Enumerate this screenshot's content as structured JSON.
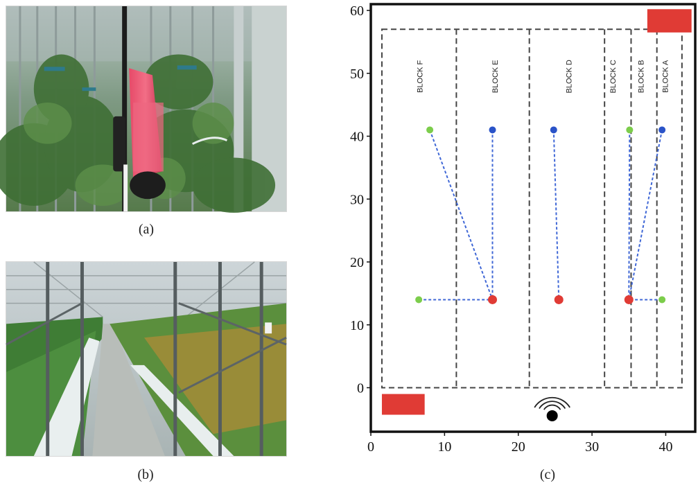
{
  "captions": {
    "a": "(a)",
    "b": "(b)",
    "c": "(c)"
  },
  "diagram": {
    "x_ticks": [
      0,
      10,
      20,
      30,
      40
    ],
    "y_ticks": [
      0,
      10,
      20,
      30,
      40,
      50,
      60
    ],
    "xlim": [
      0,
      44
    ],
    "ylim": [
      -7,
      61
    ],
    "block_labels": [
      {
        "name": "BLOCK F",
        "x": 7.0
      },
      {
        "name": "BLOCK E",
        "x": 17.2
      },
      {
        "name": "BLOCK D",
        "x": 27.2
      },
      {
        "name": "BLOCK C",
        "x": 33.2
      },
      {
        "name": "BLOCK B",
        "x": 37.0
      },
      {
        "name": "BLOCK A",
        "x": 40.3
      }
    ],
    "block_dividers": [
      11.6,
      21.5,
      31.7,
      35.3,
      38.8
    ],
    "block_region": {
      "x0": 1.5,
      "x1": 42.2,
      "y0": 0,
      "y1": 57
    },
    "red_nodes": [
      {
        "x": 16.5,
        "y": 14
      },
      {
        "x": 25.5,
        "y": 14
      },
      {
        "x": 35.0,
        "y": 14
      }
    ],
    "green_nodes": [
      {
        "x": 6.5,
        "y": 14
      },
      {
        "x": 8.0,
        "y": 41
      },
      {
        "x": 35.1,
        "y": 41
      },
      {
        "x": 39.5,
        "y": 14
      }
    ],
    "blue_nodes": [
      {
        "x": 16.5,
        "y": 41
      },
      {
        "x": 24.8,
        "y": 41
      },
      {
        "x": 39.5,
        "y": 41
      }
    ],
    "links": [
      {
        "from": [
          6.5,
          14
        ],
        "to": [
          16.5,
          14
        ]
      },
      {
        "from": [
          8.0,
          41
        ],
        "to": [
          16.5,
          14
        ]
      },
      {
        "from": [
          16.5,
          41
        ],
        "to": [
          16.5,
          14
        ]
      },
      {
        "from": [
          24.8,
          41
        ],
        "to": [
          25.5,
          14
        ]
      },
      {
        "from": [
          35.1,
          41
        ],
        "to": [
          35.0,
          14
        ]
      },
      {
        "from": [
          39.5,
          41
        ],
        "to": [
          35.0,
          14
        ]
      },
      {
        "from": [
          39.5,
          14
        ],
        "to": [
          35.0,
          14
        ]
      }
    ],
    "red_rects": [
      {
        "x0": 1.5,
        "x1": 7.3,
        "y0": -4.3,
        "y1": -1.0
      },
      {
        "x0": 37.5,
        "x1": 43.5,
        "y0": 56.5,
        "y1": 60.2
      }
    ],
    "gateway": {
      "x": 24.6,
      "y": -3.8
    },
    "colors": {
      "red": "#e03b35",
      "green": "#7ccd4b",
      "blue": "#2a53c8",
      "link": "#3f67d6",
      "dash": "#444444"
    }
  }
}
